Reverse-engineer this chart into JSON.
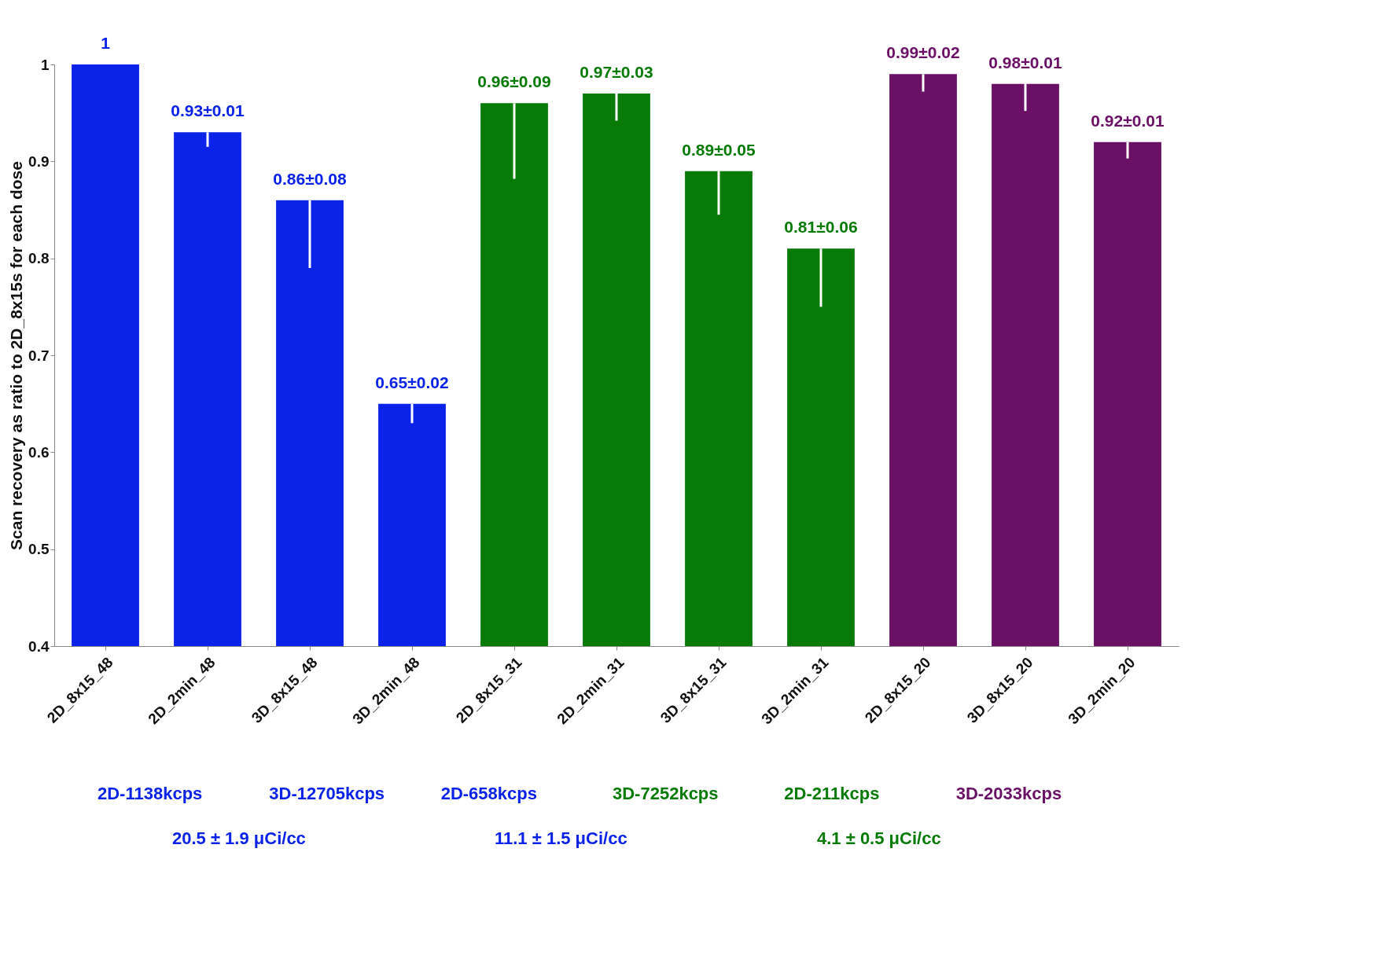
{
  "chart_data": {
    "type": "bar",
    "categories": [
      "2D_8x15_48",
      "2D_2min_48",
      "3D_8x15_48",
      "3D_2min_48",
      "2D_8x15_31",
      "2D_2min_31",
      "3D_8x15_31",
      "3D_2min_31",
      "2D_8x15_20",
      "3D_8x15_20",
      "3D_2min_20"
    ],
    "values": [
      1,
      0.93,
      0.86,
      0.65,
      0.96,
      0.97,
      0.89,
      0.81,
      0.99,
      0.98,
      0.92
    ],
    "errors": [
      null,
      [
        0.915,
        0.93
      ],
      [
        0.79,
        0.86
      ],
      [
        0.63,
        0.65
      ],
      [
        0.882,
        0.96
      ],
      [
        0.942,
        0.97
      ],
      [
        0.845,
        0.89
      ],
      [
        0.75,
        0.81
      ],
      [
        0.972,
        0.99
      ],
      [
        0.952,
        0.98
      ],
      [
        0.903,
        0.92
      ]
    ],
    "value_labels": [
      "1",
      "0.93±0.01",
      "0.86±0.08",
      "0.65±0.02",
      "0.96±0.09",
      "0.97±0.03",
      "0.89±0.05",
      "0.81±0.06",
      "0.99±0.02",
      "0.98±0.01",
      "0.92±0.01"
    ],
    "colors": [
      "#0b22e8",
      "#0b22e8",
      "#0b22e8",
      "#0b22e8",
      "#077a07",
      "#077a07",
      "#077a07",
      "#077a07",
      "#6a1166",
      "#6a1166",
      "#6a1166"
    ],
    "ylabel": "Scan recovery as ratio to 2D_8x15s for each dose",
    "ylim": [
      0.4,
      1
    ],
    "yticks": [
      0.4,
      0.5,
      0.6,
      0.7,
      0.8,
      0.9,
      1
    ],
    "grid": false,
    "annotations": [
      "2D-1138kcps",
      "3D-12705kcps",
      "2D-658kcps",
      "3D-7252kcps",
      "2D-211kcps",
      "3D-2033kcps",
      "20.5 ± 1.9 μCi/cc",
      "11.1 ± 1.5 μCi/cc",
      "4.1 ± 0.5 μCi/cc"
    ]
  }
}
